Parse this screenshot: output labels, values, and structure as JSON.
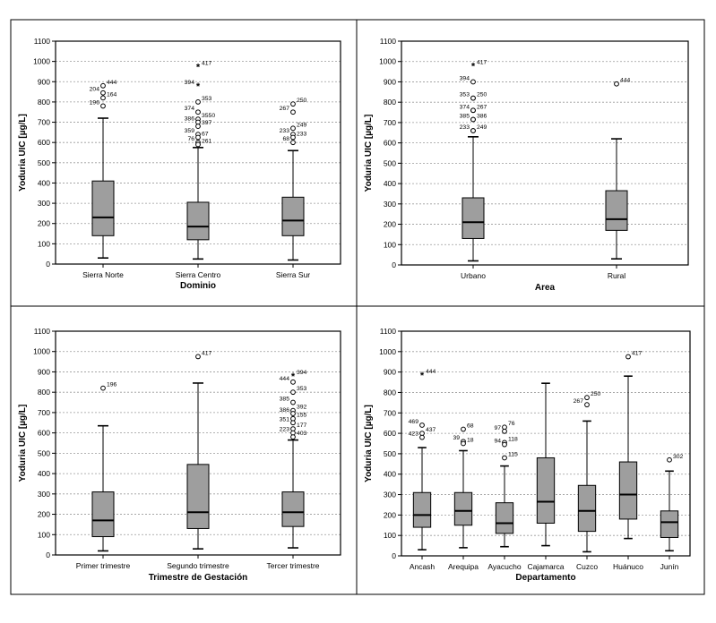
{
  "chart_data": [
    {
      "type": "boxplot",
      "ylabel": "Yoduria UIC [µg/L]",
      "xlabel": "Dominio",
      "ylim": [
        0,
        1100
      ],
      "yticks": [
        0,
        100,
        200,
        300,
        400,
        500,
        600,
        700,
        800,
        900,
        1000,
        1100
      ],
      "grid": true,
      "categories": [
        "Sierra Norte",
        "Sierra Centro",
        "Sierra Sur"
      ],
      "boxes": [
        {
          "whisker_low": 30,
          "q1": 140,
          "median": 230,
          "q3": 410,
          "whisker_high": 720,
          "outliers": [
            {
              "y": 880,
              "label": "444",
              "sym": "o"
            },
            {
              "y": 845,
              "label": "204",
              "sym": "o"
            },
            {
              "y": 820,
              "label": "164",
              "sym": "o"
            },
            {
              "y": 780,
              "label": "196",
              "sym": "o"
            }
          ]
        },
        {
          "whisker_low": 25,
          "q1": 120,
          "median": 185,
          "q3": 305,
          "whisker_high": 575,
          "outliers": [
            {
              "y": 975,
              "label": "417",
              "sym": "*"
            },
            {
              "y": 880,
              "label": "394",
              "sym": "*"
            },
            {
              "y": 800,
              "label": "353",
              "sym": "o"
            },
            {
              "y": 750,
              "label": "374",
              "sym": "o"
            },
            {
              "y": 715,
              "label": "3550",
              "sym": "o"
            },
            {
              "y": 700,
              "label": "386",
              "sym": "o"
            },
            {
              "y": 680,
              "label": "397",
              "sym": "o"
            },
            {
              "y": 640,
              "label": "359",
              "sym": "o"
            },
            {
              "y": 625,
              "label": "67",
              "sym": "o"
            },
            {
              "y": 600,
              "label": "76",
              "sym": "o"
            },
            {
              "y": 590,
              "label": "261",
              "sym": "o"
            }
          ]
        },
        {
          "whisker_low": 20,
          "q1": 140,
          "median": 215,
          "q3": 330,
          "whisker_high": 560,
          "outliers": [
            {
              "y": 790,
              "label": "250",
              "sym": "o"
            },
            {
              "y": 750,
              "label": "267",
              "sym": "o"
            },
            {
              "y": 670,
              "label": "249",
              "sym": "o"
            },
            {
              "y": 640,
              "label": "233",
              "sym": "o"
            },
            {
              "y": 625,
              "label": "233",
              "sym": "o"
            },
            {
              "y": 600,
              "label": "68",
              "sym": "o"
            }
          ]
        }
      ]
    },
    {
      "type": "boxplot",
      "ylabel": "Yoduria UIC [µg/L]",
      "xlabel": "Area",
      "ylim": [
        0,
        1100
      ],
      "yticks": [
        0,
        100,
        200,
        300,
        400,
        500,
        600,
        700,
        800,
        900,
        1000,
        1100
      ],
      "grid": true,
      "categories": [
        "Urbano",
        "Rural"
      ],
      "boxes": [
        {
          "whisker_low": 20,
          "q1": 130,
          "median": 210,
          "q3": 330,
          "whisker_high": 630,
          "outliers": [
            {
              "y": 980,
              "label": "417",
              "sym": "*"
            },
            {
              "y": 900,
              "label": "394",
              "sym": "o"
            },
            {
              "y": 820,
              "label": "250",
              "sym": "o"
            },
            {
              "y": 820,
              "label": "353",
              "sym": "o"
            },
            {
              "y": 760,
              "label": "267",
              "sym": "o"
            },
            {
              "y": 760,
              "label": "374",
              "sym": "o"
            },
            {
              "y": 715,
              "label": "386",
              "sym": "o"
            },
            {
              "y": 715,
              "label": "385",
              "sym": "o"
            },
            {
              "y": 660,
              "label": "249",
              "sym": "o"
            },
            {
              "y": 660,
              "label": "233",
              "sym": "o"
            }
          ]
        },
        {
          "whisker_low": 30,
          "q1": 170,
          "median": 225,
          "q3": 365,
          "whisker_high": 620,
          "outliers": [
            {
              "y": 890,
              "label": "444",
              "sym": "o"
            }
          ]
        }
      ]
    },
    {
      "type": "boxplot",
      "ylabel": "Yoduria UIC [µg/L]",
      "xlabel": "Trimestre de Gestación",
      "ylim": [
        0,
        1100
      ],
      "yticks": [
        0,
        100,
        200,
        300,
        400,
        500,
        600,
        700,
        800,
        900,
        1000,
        1100
      ],
      "grid": true,
      "categories": [
        "Primer trimestre",
        "Segundo trimestre",
        "Tercer trimestre"
      ],
      "boxes": [
        {
          "whisker_low": 20,
          "q1": 90,
          "median": 170,
          "q3": 310,
          "whisker_high": 635,
          "outliers": [
            {
              "y": 820,
              "label": "196",
              "sym": "o"
            }
          ]
        },
        {
          "whisker_low": 30,
          "q1": 130,
          "median": 210,
          "q3": 445,
          "whisker_high": 845,
          "outliers": [
            {
              "y": 975,
              "label": "417",
              "sym": "o"
            }
          ]
        },
        {
          "whisker_low": 35,
          "q1": 140,
          "median": 210,
          "q3": 310,
          "whisker_high": 565,
          "outliers": [
            {
              "y": 880,
              "label": "394",
              "sym": "*"
            },
            {
              "y": 850,
              "label": "444",
              "sym": "o"
            },
            {
              "y": 800,
              "label": "353",
              "sym": "o"
            },
            {
              "y": 750,
              "label": "385",
              "sym": "o"
            },
            {
              "y": 710,
              "label": "392",
              "sym": "o"
            },
            {
              "y": 695,
              "label": "386",
              "sym": "o"
            },
            {
              "y": 670,
              "label": "155",
              "sym": "o"
            },
            {
              "y": 650,
              "label": "351",
              "sym": "o"
            },
            {
              "y": 620,
              "label": "177",
              "sym": "o"
            },
            {
              "y": 600,
              "label": "223",
              "sym": "o"
            },
            {
              "y": 580,
              "label": "403",
              "sym": "o"
            }
          ]
        }
      ]
    },
    {
      "type": "boxplot",
      "ylabel": "Yoduria UIC [µg/L]",
      "xlabel": "Departamento",
      "ylim": [
        0,
        1100
      ],
      "yticks": [
        0,
        100,
        200,
        300,
        400,
        500,
        600,
        700,
        800,
        900,
        1000,
        1100
      ],
      "grid": true,
      "categories": [
        "Ancash",
        "Arequipa",
        "Ayacucho",
        "Cajamarca",
        "Cuzco",
        "Huánuco",
        "Junín"
      ],
      "boxes": [
        {
          "whisker_low": 30,
          "q1": 140,
          "median": 200,
          "q3": 310,
          "whisker_high": 530,
          "outliers": [
            {
              "y": 885,
              "label": "444",
              "sym": "*"
            },
            {
              "y": 640,
              "label": "469",
              "sym": "o"
            },
            {
              "y": 600,
              "label": "437",
              "sym": "o"
            },
            {
              "y": 580,
              "label": "423",
              "sym": "o"
            }
          ]
        },
        {
          "whisker_low": 40,
          "q1": 150,
          "median": 220,
          "q3": 310,
          "whisker_high": 515,
          "outliers": [
            {
              "y": 620,
              "label": "68",
              "sym": "o"
            },
            {
              "y": 560,
              "label": "39",
              "sym": "o"
            },
            {
              "y": 550,
              "label": "18",
              "sym": "o"
            }
          ]
        },
        {
          "whisker_low": 45,
          "q1": 110,
          "median": 160,
          "q3": 260,
          "whisker_high": 440,
          "outliers": [
            {
              "y": 630,
              "label": "76",
              "sym": "o"
            },
            {
              "y": 610,
              "label": "97",
              "sym": "o"
            },
            {
              "y": 555,
              "label": "118",
              "sym": "o"
            },
            {
              "y": 545,
              "label": "94",
              "sym": "o"
            },
            {
              "y": 480,
              "label": "115",
              "sym": "o"
            }
          ]
        },
        {
          "whisker_low": 50,
          "q1": 160,
          "median": 265,
          "q3": 480,
          "whisker_high": 845,
          "outliers": []
        },
        {
          "whisker_low": 20,
          "q1": 120,
          "median": 220,
          "q3": 345,
          "whisker_high": 660,
          "outliers": [
            {
              "y": 775,
              "label": "250",
              "sym": "o"
            },
            {
              "y": 740,
              "label": "267",
              "sym": "o"
            }
          ]
        },
        {
          "whisker_low": 85,
          "q1": 180,
          "median": 300,
          "q3": 460,
          "whisker_high": 880,
          "outliers": [
            {
              "y": 975,
              "label": "417",
              "sym": "o"
            }
          ]
        },
        {
          "whisker_low": 25,
          "q1": 90,
          "median": 165,
          "q3": 220,
          "whisker_high": 415,
          "outliers": [
            {
              "y": 470,
              "label": "302",
              "sym": "o"
            }
          ]
        }
      ]
    }
  ]
}
